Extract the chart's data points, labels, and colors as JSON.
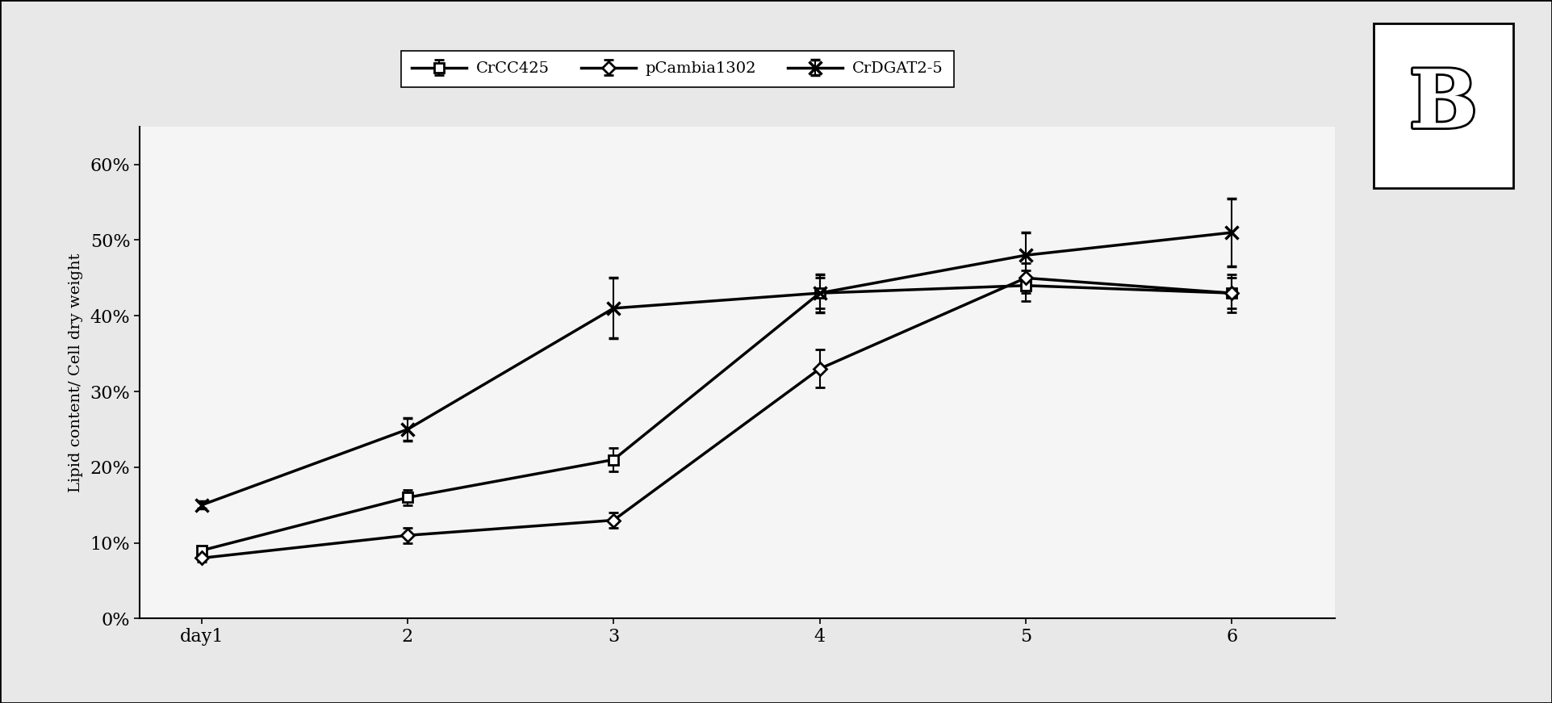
{
  "x": [
    1,
    2,
    3,
    4,
    5,
    6
  ],
  "x_labels": [
    "day1",
    "2",
    "3",
    "4",
    "5",
    "6"
  ],
  "series": [
    {
      "label": "CrCC425",
      "values": [
        0.09,
        0.16,
        0.21,
        0.43,
        0.44,
        0.43
      ],
      "yerr": [
        0.005,
        0.01,
        0.015,
        0.02,
        0.02,
        0.025
      ],
      "marker": "s",
      "markerfacecolor": "white",
      "markeredgewidth": 2.0,
      "markersize": 9
    },
    {
      "label": "pCambia1302",
      "values": [
        0.08,
        0.11,
        0.13,
        0.33,
        0.45,
        0.43
      ],
      "yerr": [
        0.005,
        0.01,
        0.01,
        0.025,
        0.02,
        0.02
      ],
      "marker": "D",
      "markerfacecolor": "white",
      "markeredgewidth": 2.0,
      "markersize": 8
    },
    {
      "label": "CrDGAT2-5",
      "values": [
        0.15,
        0.25,
        0.41,
        0.43,
        0.48,
        0.51
      ],
      "yerr": [
        0.005,
        0.015,
        0.04,
        0.025,
        0.03,
        0.045
      ],
      "marker": "x",
      "markerfacecolor": "black",
      "markeredgewidth": 2.5,
      "markersize": 11
    }
  ],
  "ylabel": "Lipid content/ Cell dry weight",
  "ylim": [
    0,
    0.65
  ],
  "yticks": [
    0.0,
    0.1,
    0.2,
    0.3,
    0.4,
    0.5,
    0.6
  ],
  "ytick_labels": [
    "0%",
    "10%",
    "20%",
    "30%",
    "40%",
    "50%",
    "60%"
  ],
  "background_color": "#f0f0f0",
  "line_color": "#000000",
  "linewidth": 2.5,
  "capsize": 4,
  "fig_width": 19.23,
  "fig_height": 8.71
}
